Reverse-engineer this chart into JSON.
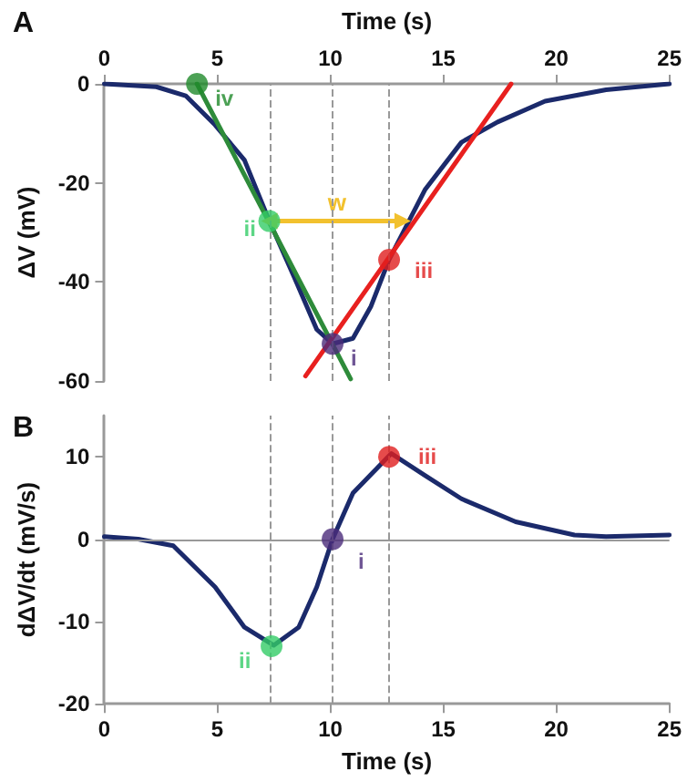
{
  "chart_data": [
    {
      "type": "line",
      "title": "A",
      "xlabel": "Time (s)",
      "ylabel": "ΔV (mV)",
      "xlim": [
        0,
        25
      ],
      "xticks": [
        0,
        5,
        10,
        15,
        20,
        25
      ],
      "ylim": [
        -60,
        0
      ],
      "yticks": [
        -60,
        -40,
        -20,
        0
      ],
      "grid": false,
      "line_style": "solid",
      "ref_lines": [
        {
          "axis": "x",
          "value": 7.3,
          "color": "#999999",
          "line_style": "dashed"
        },
        {
          "axis": "x",
          "value": 10.1,
          "color": "#999999",
          "line_style": "dashed"
        },
        {
          "axis": "x",
          "value": 12.6,
          "color": "#999999",
          "line_style": "dashed"
        }
      ],
      "annotations": [
        {
          "text": "w",
          "x": 10.3,
          "y": -24
        }
      ],
      "series": [
        {
          "type": "line",
          "color": "#1b2a6b",
          "marker": "none",
          "x": [
            0,
            2.3,
            3.6,
            4.9,
            6.2,
            7.3,
            8.4,
            9.4,
            10.1,
            11.0,
            11.8,
            12.6,
            14.2,
            15.8,
            17.4,
            19.5,
            22.2,
            25
          ],
          "values": [
            0,
            -0.6,
            -2.4,
            -8.3,
            -15.4,
            -27.7,
            -39,
            -49.6,
            -52.5,
            -51.4,
            -44.9,
            -35.5,
            -21.3,
            -11.8,
            -7.7,
            -3.5,
            -1.2,
            0
          ]
        },
        {
          "type": "line",
          "color": "#2e8b3a",
          "marker": "none",
          "x": [
            4.1,
            10.9
          ],
          "values": [
            0,
            -59.6
          ]
        },
        {
          "type": "line",
          "color": "#e8201f",
          "marker": "none",
          "x": [
            8.9,
            18
          ],
          "values": [
            -59,
            0
          ]
        },
        {
          "type": "line",
          "color": "#f2c12e",
          "marker": "triangle",
          "x": [
            7.3,
            13.2
          ],
          "values": [
            -27.7,
            -27.7
          ]
        },
        {
          "type": "scatter",
          "name": "iv",
          "color": "#1f8a2a",
          "marker": "circle",
          "x": [
            4.1
          ],
          "values": [
            0
          ]
        },
        {
          "type": "scatter",
          "name": "ii",
          "color": "#33cc66",
          "marker": "circle",
          "x": [
            7.3
          ],
          "values": [
            -27.7
          ]
        },
        {
          "type": "scatter",
          "name": "i",
          "color": "#4b2c7a",
          "marker": "circle",
          "x": [
            10.1
          ],
          "values": [
            -52.5
          ]
        },
        {
          "type": "scatter",
          "name": "iii",
          "color": "#e01e1e",
          "marker": "circle",
          "x": [
            12.6
          ],
          "values": [
            -35.5
          ]
        }
      ]
    },
    {
      "type": "line",
      "title": "B",
      "xlabel": "Time (s)",
      "ylabel": "dΔV/dt (mV/s)",
      "xlim": [
        0,
        25
      ],
      "xticks": [
        0,
        5,
        10,
        15,
        20,
        25
      ],
      "ylim": [
        -20,
        15
      ],
      "yticks": [
        -20,
        -10,
        0,
        10
      ],
      "grid": false,
      "line_style": "solid",
      "ref_lines": [
        {
          "axis": "y",
          "value": 0,
          "color": "#999999",
          "line_style": "solid"
        },
        {
          "axis": "x",
          "value": 7.3,
          "color": "#999999",
          "line_style": "dashed"
        },
        {
          "axis": "x",
          "value": 10.1,
          "color": "#999999",
          "line_style": "dashed"
        },
        {
          "axis": "x",
          "value": 12.6,
          "color": "#999999",
          "line_style": "dashed"
        }
      ],
      "series": [
        {
          "type": "line",
          "color": "#1b2a6b",
          "marker": "none",
          "x": [
            0,
            1.5,
            3.05,
            4.9,
            6.2,
            7.5,
            8.6,
            9.4,
            10.1,
            11.0,
            12.7,
            14.2,
            15.8,
            18.2,
            20.8,
            22.2,
            25
          ],
          "values": [
            0.3,
            0,
            -0.8,
            -5.8,
            -10.7,
            -12.9,
            -10.7,
            -5.8,
            0,
            5.6,
            10.4,
            7.7,
            4.9,
            2.1,
            0.5,
            0.3,
            0.5
          ]
        },
        {
          "type": "scatter",
          "name": "ii",
          "color": "#33cc66",
          "marker": "circle",
          "x": [
            7.4
          ],
          "values": [
            -13
          ]
        },
        {
          "type": "scatter",
          "name": "i",
          "color": "#4b2c7a",
          "marker": "circle",
          "x": [
            10.1
          ],
          "values": [
            0
          ]
        },
        {
          "type": "scatter",
          "name": "iii",
          "color": "#e01e1e",
          "marker": "circle",
          "x": [
            12.6
          ],
          "values": [
            10
          ]
        }
      ]
    }
  ]
}
